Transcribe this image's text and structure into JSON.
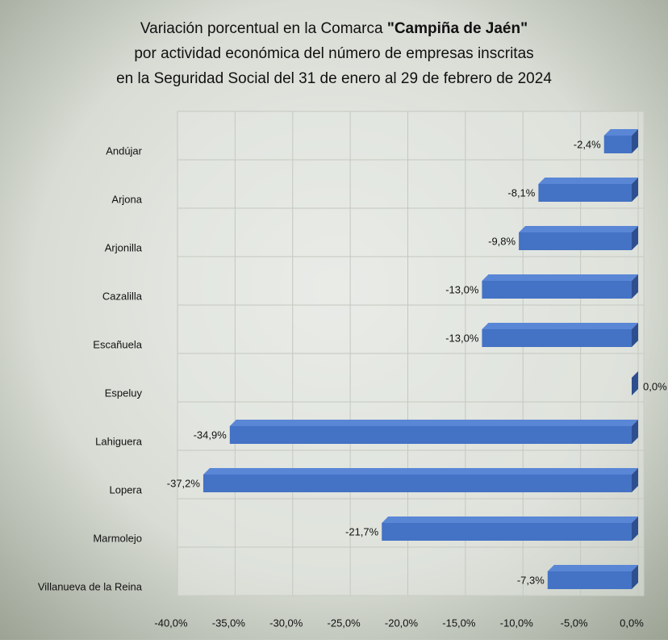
{
  "chart_data": {
    "type": "bar",
    "orientation": "horizontal",
    "title": "Variación porcentual en la Comarca",
    "title_emphasis": "\"Campiña de Jaén\"",
    "subtitle": [
      "por actividad económica del número de empresas inscritas",
      "en la Seguridad Social del 31 de enero al 29 de febrero de 2024"
    ],
    "categories": [
      "Andújar",
      "Arjona",
      "Arjonilla",
      "Cazalilla",
      "Escañuela",
      "Espeluy",
      "Lahiguera",
      "Lopera",
      "Marmolejo",
      "Villanueva de la Reina"
    ],
    "values": [
      -2.4,
      -8.1,
      -9.8,
      -13.0,
      -13.0,
      0.0,
      -34.9,
      -37.2,
      -21.7,
      -7.3
    ],
    "value_labels": [
      "-2,4%",
      "-8,1%",
      "-9,8%",
      "-13,0%",
      "-13,0%",
      "0,0%",
      "-34,9%",
      "-37,2%",
      "-21,7%",
      "-7,3%"
    ],
    "color": "#4472c4",
    "xlim": [
      -40,
      0
    ],
    "xticks": [
      {
        "value": -40,
        "label": "-40,0%"
      },
      {
        "value": -35,
        "label": "-35,0%"
      },
      {
        "value": -30,
        "label": "-30,0%"
      },
      {
        "value": -25,
        "label": "-25,0%"
      },
      {
        "value": -20,
        "label": "-20,0%"
      },
      {
        "value": -15,
        "label": "-15,0%"
      },
      {
        "value": -10,
        "label": "-10,0%"
      },
      {
        "value": -5,
        "label": "-5,0%"
      },
      {
        "value": 0,
        "label": "0,0%"
      }
    ],
    "grid": true
  }
}
